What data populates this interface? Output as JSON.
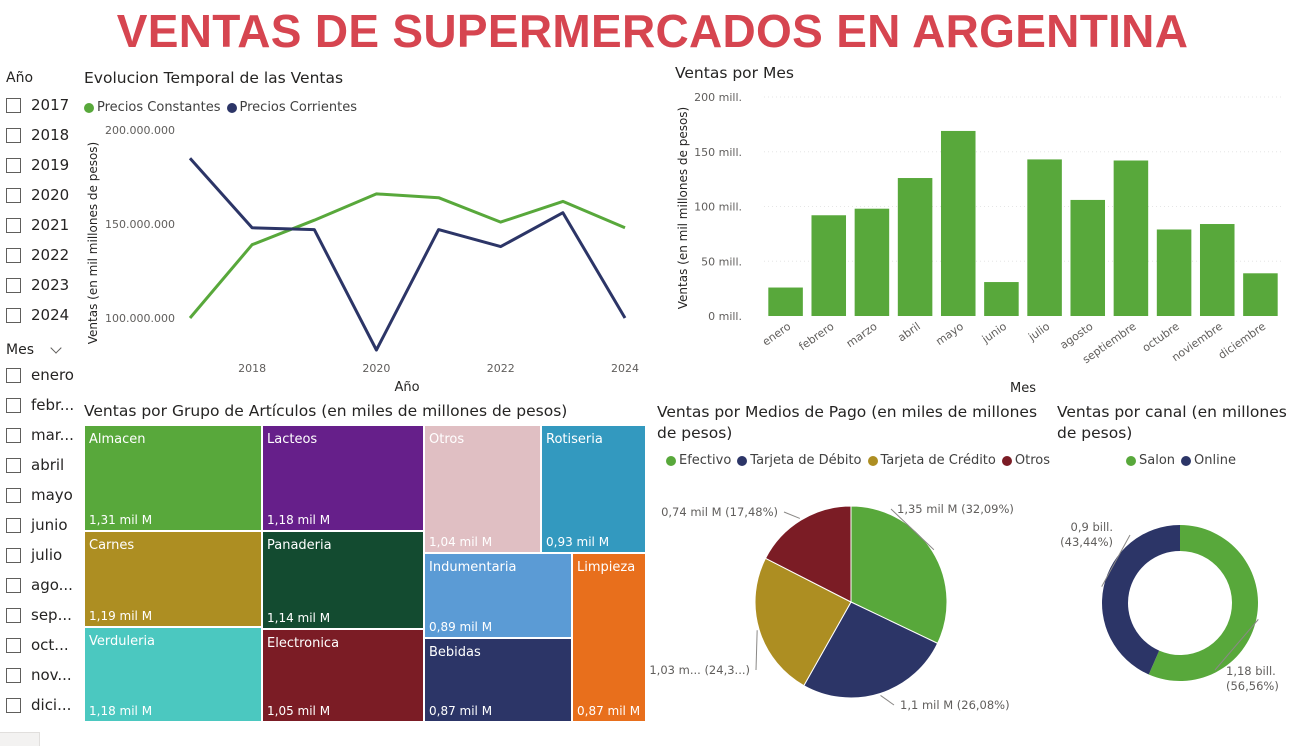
{
  "title": "VENTAS DE SUPERMERCADOS EN ARGENTINA",
  "slicer_year": {
    "title": "Año",
    "items": [
      "2017",
      "2018",
      "2019",
      "2020",
      "2021",
      "2022",
      "2023",
      "2024"
    ]
  },
  "slicer_month": {
    "title": "Mes",
    "items": [
      "enero",
      "febr...",
      "mar...",
      "abril",
      "mayo",
      "junio",
      "julio",
      "ago...",
      "sep...",
      "oct...",
      "nov...",
      "dici..."
    ]
  },
  "line_visual": {
    "title": "Evolucion Temporal de las Ventas",
    "legend": [
      "Precios Constantes",
      "Precios Corrientes"
    ]
  },
  "bar_visual": {
    "title": "Ventas por Mes"
  },
  "treemap_visual": {
    "title": "Ventas por Grupo de Artículos (en miles de millones de pesos)",
    "items": [
      {
        "name": "Almacen",
        "value": "1,31 mil M"
      },
      {
        "name": "Carnes",
        "value": "1,19 mil M"
      },
      {
        "name": "Verduleria",
        "value": "1,18 mil M"
      },
      {
        "name": "Lacteos",
        "value": "1,18 mil M"
      },
      {
        "name": "Panaderia",
        "value": "1,14 mil M"
      },
      {
        "name": "Electronica",
        "value": "1,05 mil M"
      },
      {
        "name": "Otros",
        "value": "1,04 mil M"
      },
      {
        "name": "Rotiseria",
        "value": "0,93 mil M"
      },
      {
        "name": "Indumentaria",
        "value": "0,89 mil M"
      },
      {
        "name": "Bebidas",
        "value": "0,87 mil M"
      },
      {
        "name": "Limpieza",
        "value": "0,87 mil M"
      }
    ]
  },
  "pie_visual": {
    "title_line1": "Ventas por Medios de Pago (en miles de millones",
    "title_line2": "de pesos)",
    "legend": [
      "Efectivo",
      "Tarjeta de Débito",
      "Tarjeta de Crédito",
      "Otros"
    ]
  },
  "donut_visual": {
    "title_line1": "Ventas por canal (en millones",
    "title_line2": "de pesos)",
    "legend": [
      "Salon",
      "Online"
    ]
  },
  "colors": {
    "title_red": "#d64550",
    "green": "#58a83b",
    "navy": "#2c3567",
    "gold": "#ad8e22",
    "maroon": "#7b1c25"
  },
  "chart_data": [
    {
      "type": "line",
      "title": "Evolucion Temporal de las Ventas",
      "xlabel": "Año",
      "ylabel": "Ventas (en mil millones de pesos)",
      "x": [
        2017,
        2018,
        2019,
        2020,
        2021,
        2022,
        2023,
        2024
      ],
      "x_ticks": [
        "2018",
        "2020",
        "2022",
        "2024"
      ],
      "y_ticks": [
        "100.000.000",
        "150.000.000",
        "200.000.000"
      ],
      "ylim": [
        100000000,
        200000000
      ],
      "legend_position": "top-left",
      "series": [
        {
          "name": "Precios Constantes",
          "color": "#58a83b",
          "values": [
            100000000,
            139000000,
            152000000,
            166000000,
            164000000,
            151000000,
            162000000,
            148000000
          ]
        },
        {
          "name": "Precios Corrientes",
          "color": "#2c3567",
          "values": [
            185000000,
            148000000,
            147000000,
            83000000,
            147000000,
            138000000,
            156000000,
            100000000
          ]
        }
      ]
    },
    {
      "type": "bar",
      "title": "Ventas por Mes",
      "xlabel": "Mes",
      "ylabel": "Ventas (en mil millones de pesos)",
      "categories": [
        "enero",
        "febrero",
        "marzo",
        "abril",
        "mayo",
        "junio",
        "julio",
        "agosto",
        "septiembre",
        "octubre",
        "noviembre",
        "diciembre"
      ],
      "values": [
        26,
        92,
        98,
        126,
        169,
        31,
        143,
        106,
        142,
        79,
        84,
        39
      ],
      "y_ticks": [
        "0 mill.",
        "50 mill.",
        "100 mill.",
        "150 mill.",
        "200 mill."
      ],
      "ylim": [
        0,
        200
      ],
      "color": "#58a83b",
      "grid": true
    },
    {
      "type": "pie",
      "title": "Ventas por Medios de Pago (en miles de millones de pesos)",
      "legend_position": "top",
      "slices": [
        {
          "name": "Efectivo",
          "value": 1.35,
          "percent": 32.09,
          "label": "1,35 mil M (32,09%)",
          "color": "#58a83b"
        },
        {
          "name": "Tarjeta de Débito",
          "value": 1.1,
          "percent": 26.08,
          "label": "1,1 mil M (26,08%)",
          "color": "#2c3567"
        },
        {
          "name": "Tarjeta de Crédito",
          "value": 1.03,
          "percent": 24.35,
          "label": "1,03 m... (24,3...)",
          "color": "#ad8e22"
        },
        {
          "name": "Otros",
          "value": 0.74,
          "percent": 17.48,
          "label": "0,74 mil M (17,48%)",
          "color": "#7b1c25"
        }
      ]
    },
    {
      "type": "pie",
      "subtype": "donut",
      "title": "Ventas por canal (en millones de pesos)",
      "legend_position": "top",
      "slices": [
        {
          "name": "Salon",
          "value": 1.18,
          "percent": 56.56,
          "label_l1": "1,18 bill.",
          "label_l2": "(56,56%)",
          "color": "#58a83b"
        },
        {
          "name": "Online",
          "value": 0.9,
          "percent": 43.44,
          "label_l1": "0,9 bill.",
          "label_l2": "(43,44%)",
          "color": "#2c3567"
        }
      ]
    }
  ]
}
